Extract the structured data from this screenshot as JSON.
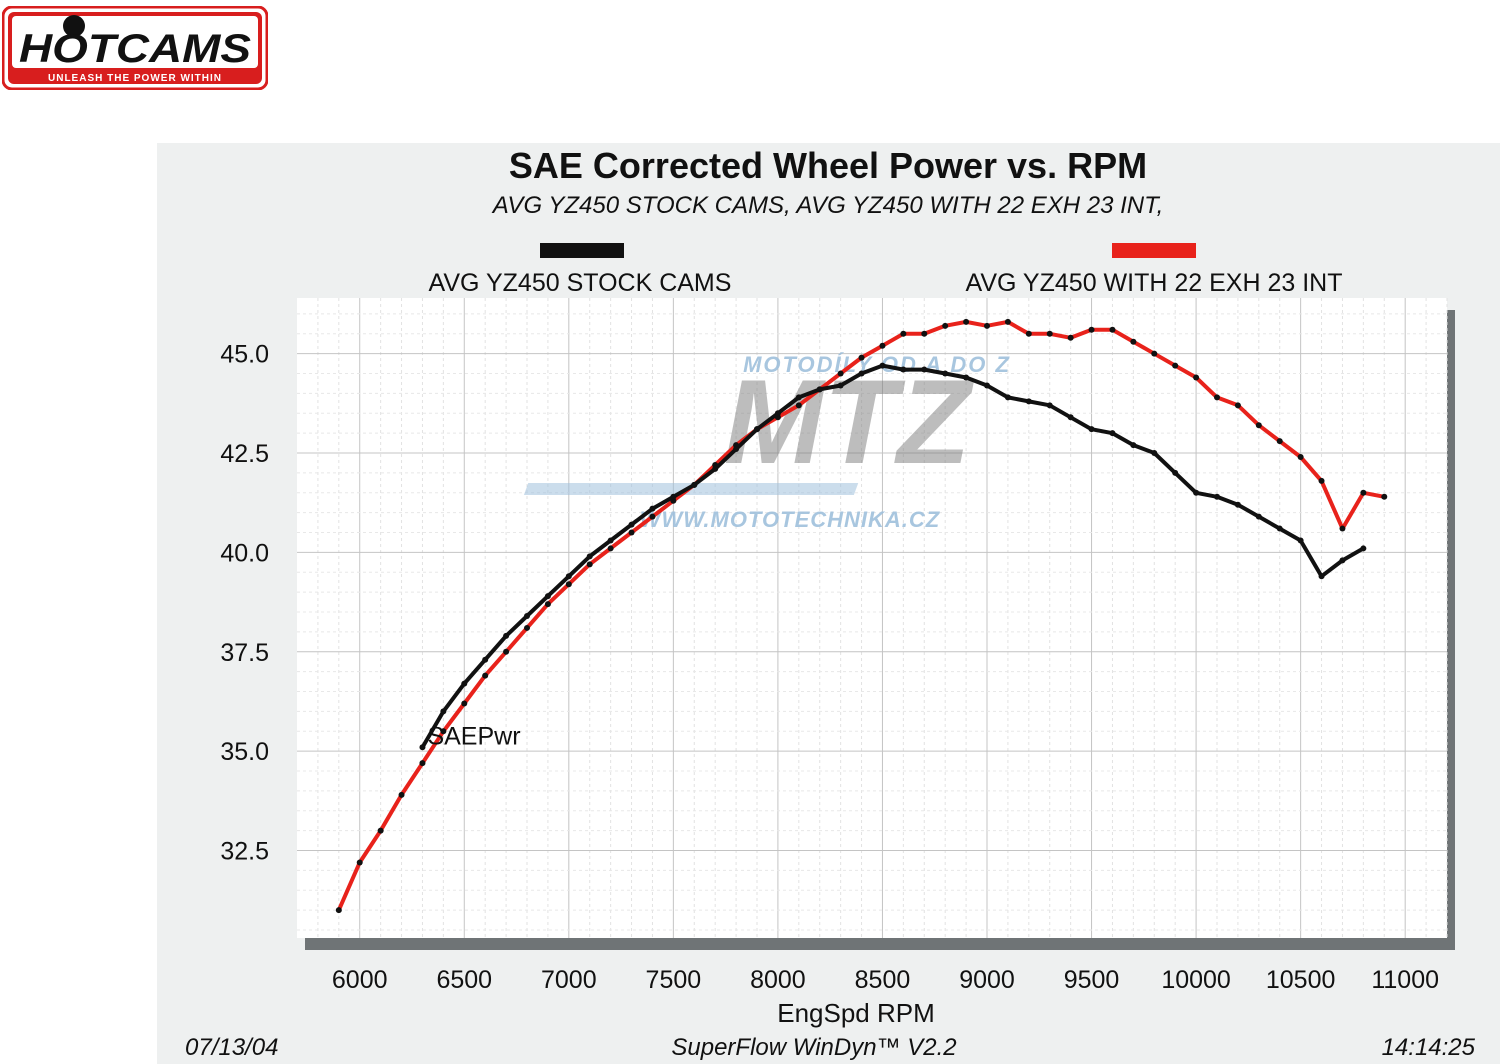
{
  "brand": {
    "logo_text": "HOTCAMS",
    "tagline": "UNLEASH THE POWER WITHIN",
    "colors": {
      "red": "#d81e1e",
      "black": "#111111"
    }
  },
  "watermark": {
    "top_text": "MOTODÍLY OD A DO Z",
    "logo_text": "MTZ",
    "url_text": "WWW.MOTOTECHNIKA.CZ"
  },
  "footer": {
    "date": "07/13/04",
    "software": "SuperFlow WinDyn™ V2.2",
    "time": "14:14:25"
  },
  "chart_data": {
    "type": "line",
    "title": "SAE Corrected Wheel Power vs. RPM",
    "subtitle": "AVG YZ450 STOCK CAMS, AVG YZ450 WITH 22 EXH 23 INT,",
    "xlabel": "EngSpd  RPM",
    "ylabel": "",
    "curve_label": "SAEPwr",
    "xlim": [
      5700,
      11200
    ],
    "ylim": [
      30.3,
      46.4
    ],
    "x_ticks": [
      6000,
      6500,
      7000,
      7500,
      8000,
      8500,
      9000,
      9500,
      10000,
      10500,
      11000
    ],
    "x_tick_labels": [
      "6000",
      "6500",
      "7000",
      "7500",
      "8000",
      "8500",
      "9000",
      "9500",
      "10000",
      "10500",
      "11000"
    ],
    "y_ticks": [
      32.5,
      35.0,
      37.5,
      40.0,
      42.5,
      45.0
    ],
    "y_tick_labels": [
      "32.5",
      "35.0",
      "37.5",
      "40.0",
      "42.5",
      "45.0"
    ],
    "grid": true,
    "legend_position": "top",
    "series": [
      {
        "name": "AVG YZ450 STOCK CAMS",
        "color": "#111111",
        "x": [
          6300,
          6400,
          6500,
          6600,
          6700,
          6800,
          6900,
          7000,
          7100,
          7200,
          7300,
          7400,
          7500,
          7600,
          7700,
          7800,
          7900,
          8000,
          8100,
          8200,
          8300,
          8400,
          8500,
          8600,
          8700,
          8800,
          8900,
          9000,
          9100,
          9200,
          9300,
          9400,
          9500,
          9600,
          9700,
          9800,
          9900,
          10000,
          10100,
          10200,
          10300,
          10400,
          10500,
          10600,
          10700,
          10800
        ],
        "y": [
          35.1,
          36.0,
          36.7,
          37.3,
          37.9,
          38.4,
          38.9,
          39.4,
          39.9,
          40.3,
          40.7,
          41.1,
          41.4,
          41.7,
          42.1,
          42.6,
          43.1,
          43.5,
          43.9,
          44.1,
          44.2,
          44.5,
          44.7,
          44.6,
          44.6,
          44.5,
          44.4,
          44.2,
          43.9,
          43.8,
          43.7,
          43.4,
          43.1,
          43.0,
          42.7,
          42.5,
          42.0,
          41.5,
          41.4,
          41.2,
          40.9,
          40.6,
          40.3,
          39.4,
          39.8,
          40.1
        ]
      },
      {
        "name": "AVG YZ450 WITH 22 EXH 23 INT",
        "color": "#e8221b",
        "x": [
          5900,
          6000,
          6100,
          6200,
          6300,
          6400,
          6500,
          6600,
          6700,
          6800,
          6900,
          7000,
          7100,
          7200,
          7300,
          7400,
          7500,
          7600,
          7700,
          7800,
          7900,
          8000,
          8100,
          8200,
          8300,
          8400,
          8500,
          8600,
          8700,
          8800,
          8900,
          9000,
          9100,
          9200,
          9300,
          9400,
          9500,
          9600,
          9700,
          9800,
          9900,
          10000,
          10100,
          10200,
          10300,
          10400,
          10500,
          10600,
          10700,
          10800,
          10900
        ],
        "y": [
          31.0,
          32.2,
          33.0,
          33.9,
          34.7,
          35.5,
          36.2,
          36.9,
          37.5,
          38.1,
          38.7,
          39.2,
          39.7,
          40.1,
          40.5,
          40.9,
          41.3,
          41.7,
          42.2,
          42.7,
          43.1,
          43.4,
          43.7,
          44.1,
          44.5,
          44.9,
          45.2,
          45.5,
          45.5,
          45.7,
          45.8,
          45.7,
          45.8,
          45.5,
          45.5,
          45.4,
          45.6,
          45.6,
          45.3,
          45.0,
          44.7,
          44.4,
          43.9,
          43.7,
          43.2,
          42.8,
          42.4,
          41.8,
          40.6,
          41.5,
          41.4
        ]
      }
    ]
  }
}
